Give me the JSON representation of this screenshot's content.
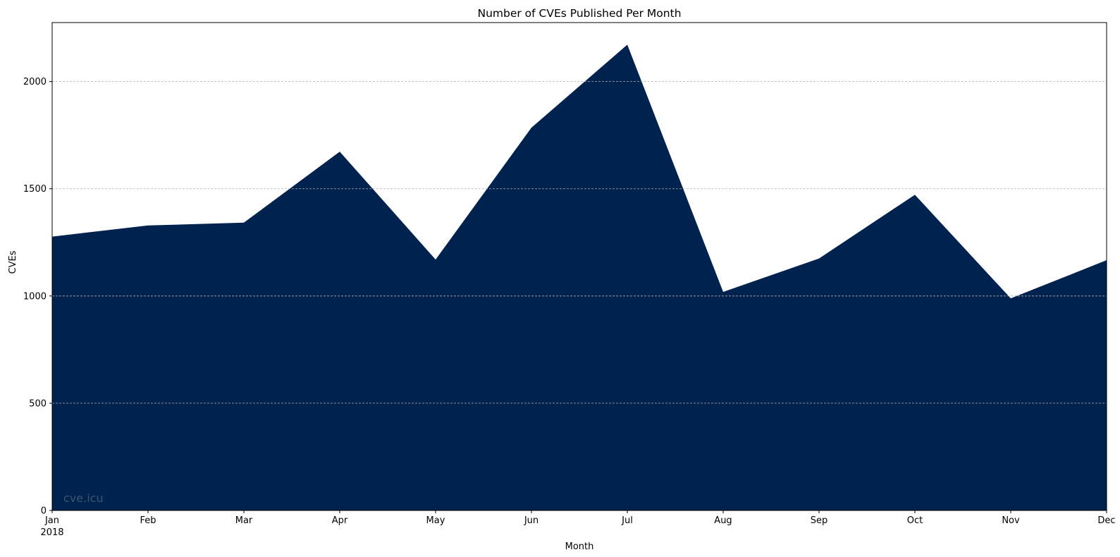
{
  "chart_data": {
    "type": "area",
    "title": "Number of CVEs Published Per Month",
    "xlabel": "Month",
    "ylabel": "CVEs",
    "x": [
      "Jan",
      "Feb",
      "Mar",
      "Apr",
      "May",
      "Jun",
      "Jul",
      "Aug",
      "Sep",
      "Oct",
      "Nov",
      "Dec"
    ],
    "x_year_label": "2018",
    "values": [
      1277,
      1329,
      1342,
      1673,
      1170,
      1785,
      2172,
      1019,
      1175,
      1472,
      989,
      1167
    ],
    "ylim": [
      0,
      2275
    ],
    "yticks": [
      0,
      500,
      1000,
      1500,
      2000
    ],
    "grid": "horizontal dashed",
    "legend": "none",
    "fill_color": "#00224e",
    "grid_color": "#b0b0b0",
    "watermark": "cve.icu",
    "watermark_color": "#3d5470"
  }
}
